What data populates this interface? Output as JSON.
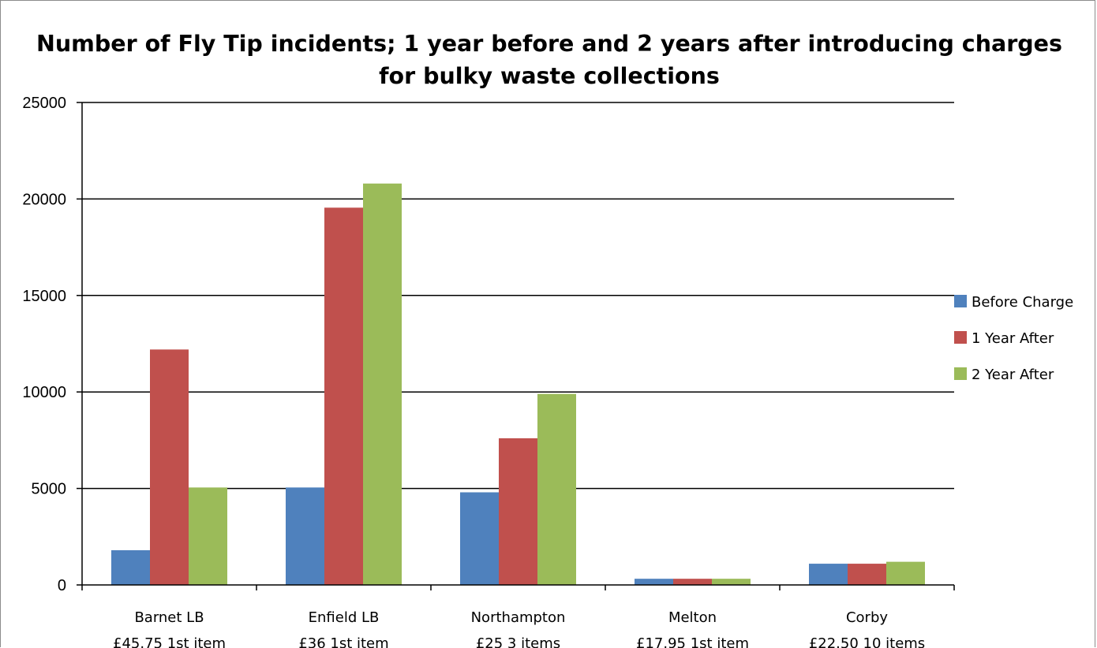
{
  "chart_data": {
    "type": "bar",
    "title": "Number of Fly Tip incidents; 1 year before and 2 years after introducing charges for bulky waste collections",
    "xlabel": "",
    "ylabel": "",
    "ylim": [
      0,
      25000
    ],
    "yticks": [
      0,
      5000,
      10000,
      15000,
      20000,
      25000
    ],
    "categories": [
      [
        "Barnet LB",
        "£45.75 1st item"
      ],
      [
        "Enfield LB",
        "£36 1st item"
      ],
      [
        "Northampton",
        "£25 3 items"
      ],
      [
        "Melton",
        "£17.95 1st item"
      ],
      [
        "Corby",
        "£22.50 10 items"
      ]
    ],
    "series": [
      {
        "name": "Before Charge",
        "color": "#4f81bd",
        "values": [
          1800,
          5050,
          4800,
          320,
          1100
        ]
      },
      {
        "name": "1 Year After",
        "color": "#c0504d",
        "values": [
          12200,
          19550,
          7600,
          320,
          1100
        ]
      },
      {
        "name": "2 Year After",
        "color": "#9bbb59",
        "values": [
          5050,
          20800,
          9900,
          320,
          1200
        ]
      }
    ],
    "grid": true,
    "legend_position": "right"
  }
}
